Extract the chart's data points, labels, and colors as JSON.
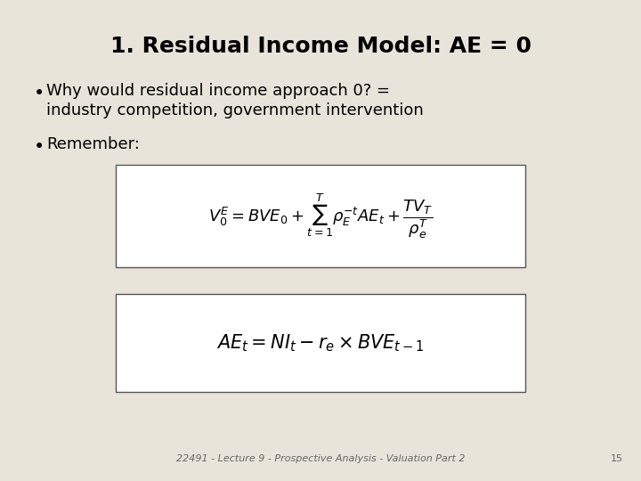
{
  "title": "1. Residual Income Model: AE = 0",
  "bullet1_line1": "Why would residual income approach 0? =",
  "bullet1_line2": "industry competition, government intervention",
  "bullet2": "Remember:",
  "formula1": "$V_0^E = BVE_0 + \\sum_{t=1}^{T} \\rho_E^{-t} AE_t + \\dfrac{TV_T}{\\rho_e^T}$",
  "formula2": "$AE_t = NI_t - r_e \\times BVE_{t-1}$",
  "footer": "22491 - Lecture 9 - Prospective Analysis - Valuation Part 2",
  "page_num": "15",
  "bg_color": "#e8e4da",
  "title_fontsize": 18,
  "bullet_fontsize": 13,
  "formula1_fontsize": 13,
  "formula2_fontsize": 15,
  "footer_fontsize": 8
}
